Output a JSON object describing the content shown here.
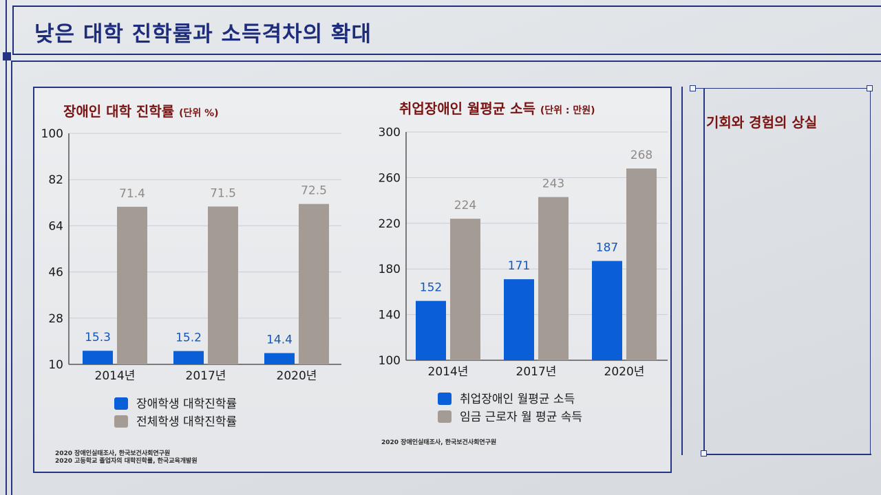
{
  "slide": {
    "title": "낮은 대학 진학률과 소득격차의 확대",
    "side_title": "기회와 경험의 상실"
  },
  "colors": {
    "disabled": "#0a5fd8",
    "overall": "#a59b95",
    "title": "#7a1412",
    "frame": "#25357f"
  },
  "chart_data": [
    {
      "type": "bar",
      "title": "장애인 대학 진학률",
      "unit": "(단위 %)",
      "categories": [
        "2014년",
        "2017년",
        "2020년"
      ],
      "series": [
        {
          "name": "장애학생 대학진학률",
          "values": [
            15.3,
            15.2,
            14.4
          ]
        },
        {
          "name": "전체학생  대학진학률",
          "values": [
            71.4,
            71.5,
            72.5
          ]
        }
      ],
      "ylim": [
        10,
        100
      ],
      "yticks": [
        10,
        28,
        46,
        64,
        82,
        100
      ],
      "grid": true,
      "legend": "bottom",
      "source": [
        "2020 장애인실태조사, 한국보건사회연구원",
        "2020 고등학교 졸업자의 대학진학률, 한국교육개발원"
      ]
    },
    {
      "type": "bar",
      "title": "취업장애인 월평균 소득",
      "unit": "(단위 : 만원)",
      "categories": [
        "2014년",
        "2017년",
        "2020년"
      ],
      "series": [
        {
          "name": "취업장애인 월평균 소득",
          "values": [
            152,
            171,
            187
          ]
        },
        {
          "name": "임금 근로자 월 평균 속득",
          "values": [
            224,
            243,
            268
          ]
        }
      ],
      "ylim": [
        100,
        300
      ],
      "yticks": [
        100,
        140,
        180,
        220,
        260,
        300
      ],
      "grid": true,
      "legend": "bottom",
      "source": [
        "2020 장애인실태조사, 한국보건사회연구원"
      ]
    }
  ]
}
